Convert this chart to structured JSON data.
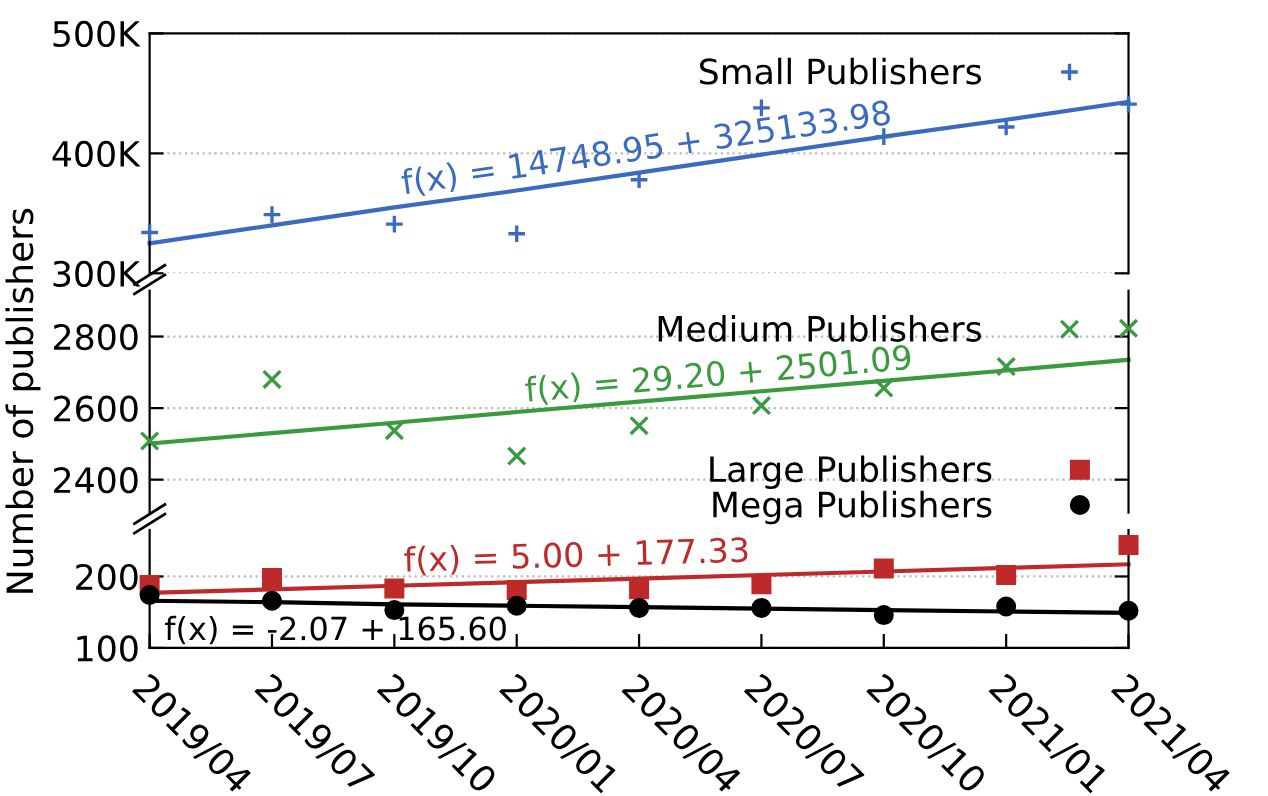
{
  "chart_data": [
    {
      "type": "scatter",
      "categories": [
        "2019/04",
        "2019/07",
        "2019/10",
        "2020/01",
        "2020/04",
        "2020/07",
        "2020/10",
        "2021/01",
        "2021/04"
      ],
      "ylim": [
        300000,
        500000
      ],
      "yticks": [
        {
          "value": 300000,
          "label": "300K"
        },
        {
          "value": 400000,
          "label": "400K"
        },
        {
          "value": 500000,
          "label": "500K"
        }
      ],
      "grid": "y",
      "legend": "top right",
      "tick_labels": "y",
      "series": [
        {
          "name": "Small Publishers",
          "color": "#3b6bbf",
          "marker": "plus",
          "values": [
            334000,
            349000,
            341000,
            333000,
            378000,
            438000,
            414000,
            422000,
            441000
          ]
        },
        {
          "type": "line",
          "color": "#3b6bbf",
          "values": [
            325000,
            340000,
            355000,
            369000,
            384000,
            399000,
            414000,
            428000,
            443000
          ]
        }
      ],
      "annotations": [
        {
          "text": "f(x) = 14748.95 + 325133.98",
          "x": "2019/10",
          "y": 360000
        }
      ]
    },
    {
      "type": "scatter",
      "categories": [
        "2019/04",
        "2019/07",
        "2019/10",
        "2020/01",
        "2020/04",
        "2020/07",
        "2020/10",
        "2021/01",
        "2021/04"
      ],
      "ylim": [
        2308,
        2928
      ],
      "yticks": [
        2400,
        2600,
        2800
      ],
      "grid": "y",
      "legend": "top right",
      "tick_labels": "y",
      "ylabel": "Number of publishers",
      "series": [
        {
          "name": "Medium Publishers",
          "color": "#3a9a3e",
          "marker": "cross",
          "values": [
            2508,
            2680,
            2537,
            2466,
            2551,
            2607,
            2656,
            2716,
            2823
          ]
        },
        {
          "type": "line",
          "color": "#3a9a3e",
          "values": [
            2501,
            2530,
            2559,
            2589,
            2618,
            2647,
            2676,
            2705,
            2735
          ]
        }
      ],
      "annotations": [
        {
          "text": "f(x) = 29.20 + 2501.09",
          "x": "2020/01",
          "y": 2598
        }
      ]
    },
    {
      "type": "scatter",
      "categories": [
        "2019/04",
        "2019/07",
        "2019/10",
        "2020/01",
        "2020/04",
        "2020/07",
        "2020/10",
        "2021/01",
        "2021/04"
      ],
      "ylim": [
        100,
        265
      ],
      "yticks": [
        100,
        200
      ],
      "grid": "y",
      "legend": "top right",
      "series": [
        {
          "name": "Large Publishers",
          "color": "#be2a2a",
          "marker": "square",
          "values": [
            188,
            198,
            183,
            181,
            182,
            189,
            211,
            202,
            244
          ]
        },
        {
          "name": "Mega Publishers",
          "color": "#000000",
          "marker": "circle",
          "values": [
            174,
            166,
            153,
            159,
            156,
            156,
            146,
            158,
            152
          ]
        },
        {
          "type": "line",
          "color": "#be2a2a",
          "values": [
            177,
            182,
            187,
            192,
            197,
            202,
            207,
            212,
            217
          ]
        },
        {
          "type": "line",
          "color": "#000000",
          "values": [
            166,
            164,
            161,
            159,
            157,
            155,
            153,
            151,
            149
          ]
        }
      ],
      "annotations": [
        {
          "text": "f(x) = 5.00 + 177.33",
          "x": "2019/10",
          "y": 197
        },
        "f(x) = -2.07 + 165.60"
      ]
    }
  ]
}
